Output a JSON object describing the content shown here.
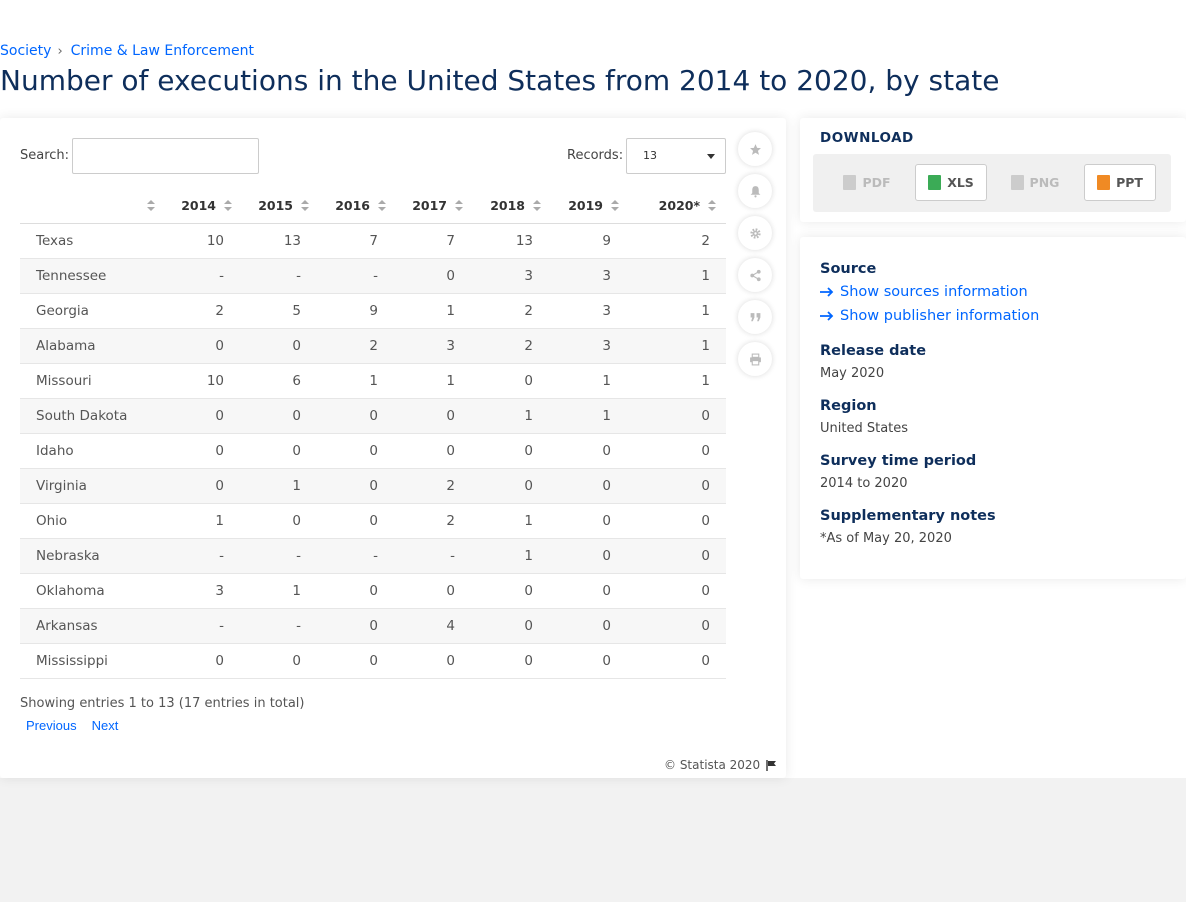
{
  "breadcrumb": {
    "items": [
      "Society",
      "Crime & Law Enforcement"
    ],
    "separator": "›"
  },
  "title": "Number of executions in the United States from 2014 to 2020, by state",
  "controls": {
    "search_label": "Search:",
    "search_value": "",
    "records_label": "Records:",
    "records_value": "13"
  },
  "table": {
    "headers": [
      "",
      "2014",
      "2015",
      "2016",
      "2017",
      "2018",
      "2019",
      "2020*"
    ],
    "rows": [
      [
        "Texas",
        "10",
        "13",
        "7",
        "7",
        "13",
        "9",
        "2"
      ],
      [
        "Tennessee",
        "-",
        "-",
        "-",
        "0",
        "3",
        "3",
        "1"
      ],
      [
        "Georgia",
        "2",
        "5",
        "9",
        "1",
        "2",
        "3",
        "1"
      ],
      [
        "Alabama",
        "0",
        "0",
        "2",
        "3",
        "2",
        "3",
        "1"
      ],
      [
        "Missouri",
        "10",
        "6",
        "1",
        "1",
        "0",
        "1",
        "1"
      ],
      [
        "South Dakota",
        "0",
        "0",
        "0",
        "0",
        "1",
        "1",
        "0"
      ],
      [
        "Idaho",
        "0",
        "0",
        "0",
        "0",
        "0",
        "0",
        "0"
      ],
      [
        "Virginia",
        "0",
        "1",
        "0",
        "2",
        "0",
        "0",
        "0"
      ],
      [
        "Ohio",
        "1",
        "0",
        "0",
        "2",
        "1",
        "0",
        "0"
      ],
      [
        "Nebraska",
        "-",
        "-",
        "-",
        "-",
        "1",
        "0",
        "0"
      ],
      [
        "Oklahoma",
        "3",
        "1",
        "0",
        "0",
        "0",
        "0",
        "0"
      ],
      [
        "Arkansas",
        "-",
        "-",
        "0",
        "4",
        "0",
        "0",
        "0"
      ],
      [
        "Mississippi",
        "0",
        "0",
        "0",
        "0",
        "0",
        "0",
        "0"
      ]
    ]
  },
  "pagination": {
    "info": "Showing entries 1 to 13 (17 entries in total)",
    "previous": "Previous",
    "next": "Next"
  },
  "copyright": "© Statista 2020",
  "toolbar_icons": [
    "star-icon",
    "bell-icon",
    "gear-icon",
    "share-icon",
    "quote-icon",
    "print-icon"
  ],
  "download": {
    "title": "DOWNLOAD",
    "buttons": [
      {
        "label": "PDF",
        "enabled": false,
        "color": "#cccccc"
      },
      {
        "label": "XLS",
        "enabled": true,
        "color": "#3bab56"
      },
      {
        "label": "PNG",
        "enabled": false,
        "color": "#cccccc"
      },
      {
        "label": "PPT",
        "enabled": true,
        "color": "#f08a24"
      }
    ]
  },
  "info": {
    "source_heading": "Source",
    "show_sources": "Show sources information",
    "show_publisher": "Show publisher information",
    "release_heading": "Release date",
    "release_value": "May 2020",
    "region_heading": "Region",
    "region_value": "United States",
    "survey_heading": "Survey time period",
    "survey_value": "2014 to 2020",
    "notes_heading": "Supplementary notes",
    "notes_value": "*As of May 20, 2020"
  },
  "colors": {
    "title": "#0e2e5b",
    "link": "#0066ff",
    "background": "#f2f2f2"
  }
}
